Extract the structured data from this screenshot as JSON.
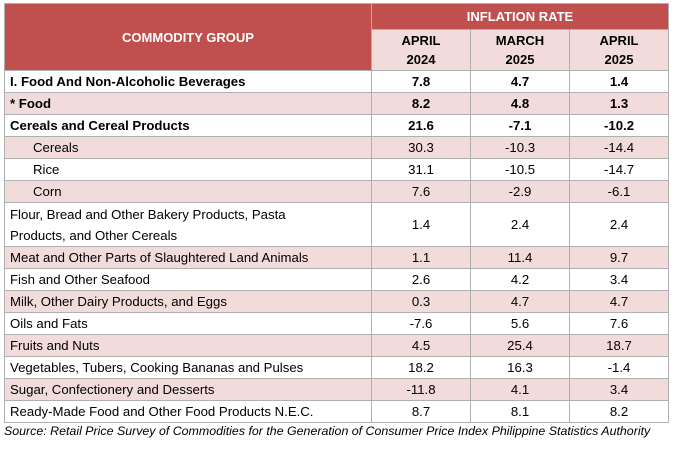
{
  "header": {
    "group_label": "COMMODITY GROUP",
    "inflation_label": "INFLATION RATE",
    "columns": [
      {
        "month": "APRIL",
        "year": "2024"
      },
      {
        "month": "MARCH",
        "year": "2025"
      },
      {
        "month": "APRIL",
        "year": "2025"
      }
    ]
  },
  "rows": [
    {
      "name": "I. Food And Non-Alcoholic Beverages",
      "v1": "7.8",
      "v2": "4.7",
      "v3": "1.4"
    },
    {
      "name": "* Food",
      "v1": "8.2",
      "v2": "4.8",
      "v3": "1.3"
    },
    {
      "name": "Cereals and Cereal Products",
      "v1": "21.6",
      "v2": "-7.1",
      "v3": "-10.2"
    },
    {
      "name": "Cereals",
      "v1": "30.3",
      "v2": "-10.3",
      "v3": "-14.4"
    },
    {
      "name": "Rice",
      "v1": "31.1",
      "v2": "-10.5",
      "v3": "-14.7"
    },
    {
      "name": "Corn",
      "v1": "7.6",
      "v2": "-2.9",
      "v3": "-6.1"
    },
    {
      "name_line1": "Flour, Bread and Other Bakery Products, Pasta",
      "name_line2": "Products, and Other Cereals",
      "v1": "1.4",
      "v2": "2.4",
      "v3": "2.4"
    },
    {
      "name": "Meat and Other Parts of Slaughtered Land Animals",
      "v1": "1.1",
      "v2": "11.4",
      "v3": "9.7"
    },
    {
      "name": "Fish and Other Seafood",
      "v1": "2.6",
      "v2": "4.2",
      "v3": "3.4"
    },
    {
      "name": "Milk, Other Dairy Products, and Eggs",
      "v1": "0.3",
      "v2": "4.7",
      "v3": "4.7"
    },
    {
      "name": "Oils and Fats",
      "v1": "-7.6",
      "v2": "5.6",
      "v3": "7.6"
    },
    {
      "name": "Fruits and Nuts",
      "v1": "4.5",
      "v2": "25.4",
      "v3": "18.7"
    },
    {
      "name": "Vegetables, Tubers, Cooking Bananas and Pulses",
      "v1": "18.2",
      "v2": "16.3",
      "v3": "-1.4"
    },
    {
      "name": "Sugar, Confectionery and Desserts",
      "v1": "-11.8",
      "v2": "4.1",
      "v3": "3.4"
    },
    {
      "name": "Ready-Made Food and Other Food Products N.E.C.",
      "v1": "8.7",
      "v2": "8.1",
      "v3": "8.2"
    }
  ],
  "source": "Source: Retail Price Survey of Commodities for the Generation of Consumer Price Index Philippine Statistics Authority",
  "colors": {
    "header_red": "#c0504d",
    "header_pink": "#f2dcdb"
  }
}
